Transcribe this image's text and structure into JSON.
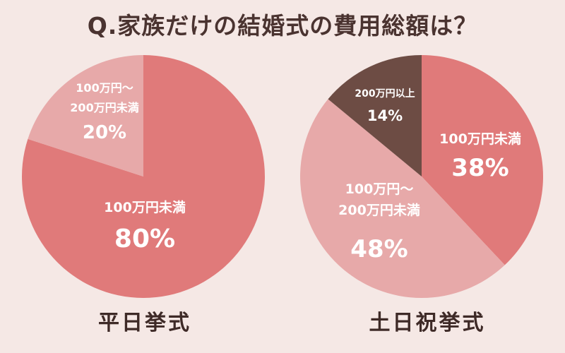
{
  "title": "Q.家族だけの結婚式の費用総額は？",
  "colors": {
    "under100": "#e07a7a",
    "between": "#e7a9a9",
    "over200": "#6d4c44",
    "background": "#f5e8e5"
  },
  "chart_data": [
    {
      "type": "pie",
      "name": "平日挙式",
      "caption": "平日挙式",
      "slices": [
        {
          "label_lines": [
            "100万円未満"
          ],
          "pct_text": "80%",
          "value": 80,
          "color_key": "under100"
        },
        {
          "label_lines": [
            "100万円～",
            "200万円未満"
          ],
          "pct_text": "20%",
          "value": 20,
          "color_key": "between"
        }
      ]
    },
    {
      "type": "pie",
      "name": "土日祝挙式",
      "caption": "土日祝挙式",
      "slices": [
        {
          "label_lines": [
            "100万円未満"
          ],
          "pct_text": "38%",
          "value": 38,
          "color_key": "under100"
        },
        {
          "label_lines": [
            "100万円～",
            "200万円未満"
          ],
          "pct_text": "48%",
          "value": 48,
          "color_key": "between"
        },
        {
          "label_lines": [
            "200万円以上"
          ],
          "pct_text": "14%",
          "value": 14,
          "color_key": "over200"
        }
      ]
    }
  ]
}
